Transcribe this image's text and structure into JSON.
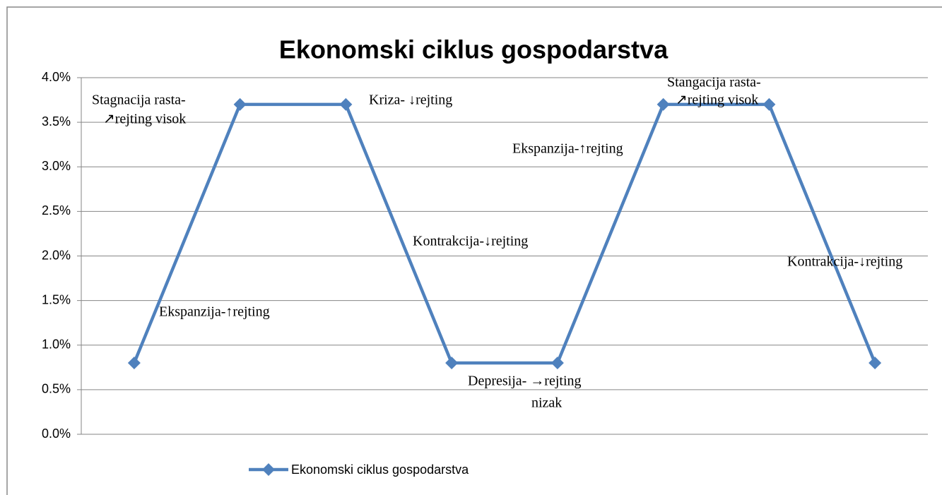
{
  "chart_data": {
    "type": "line",
    "title": "Ekonomski ciklus gospodarstva",
    "categories": [
      null,
      null,
      null,
      null,
      null,
      null,
      null,
      null
    ],
    "series": [
      {
        "name": "Ekonomski ciklus gospodarstva",
        "color": "#4f81bd",
        "values": [
          0.8,
          3.7,
          3.7,
          0.8,
          0.8,
          3.7,
          3.7,
          0.8
        ]
      }
    ],
    "ylim": [
      0,
      4
    ],
    "yticks": [
      {
        "value": 0,
        "label": "0.0%"
      },
      {
        "value": 0.5,
        "label": "0.5%"
      },
      {
        "value": 1,
        "label": "1.0%"
      },
      {
        "value": 1.5,
        "label": "1.5%"
      },
      {
        "value": 2,
        "label": "2.0%"
      },
      {
        "value": 2.5,
        "label": "2.5%"
      },
      {
        "value": 3,
        "label": "3.0%"
      },
      {
        "value": 3.5,
        "label": "3.5%"
      },
      {
        "value": 4,
        "label": "4.0%"
      }
    ],
    "grid": true,
    "legend": "bottom",
    "annotations": [
      [
        "Stagnacija rasta-",
        "↗rejting visok"
      ],
      [
        "Kriza- ↓rejting"
      ],
      [
        "Ekspanzija-↑rejting"
      ],
      [
        "Kontrakcija-↓rejting"
      ],
      [
        "Kontrakcija-↓rejting"
      ],
      [
        "Ekspanzija-↑rejting"
      ],
      [
        "Depresija- →rejting",
        "nizak"
      ],
      [
        "Stangacija rasta-",
        "↗rejting visok"
      ]
    ]
  }
}
